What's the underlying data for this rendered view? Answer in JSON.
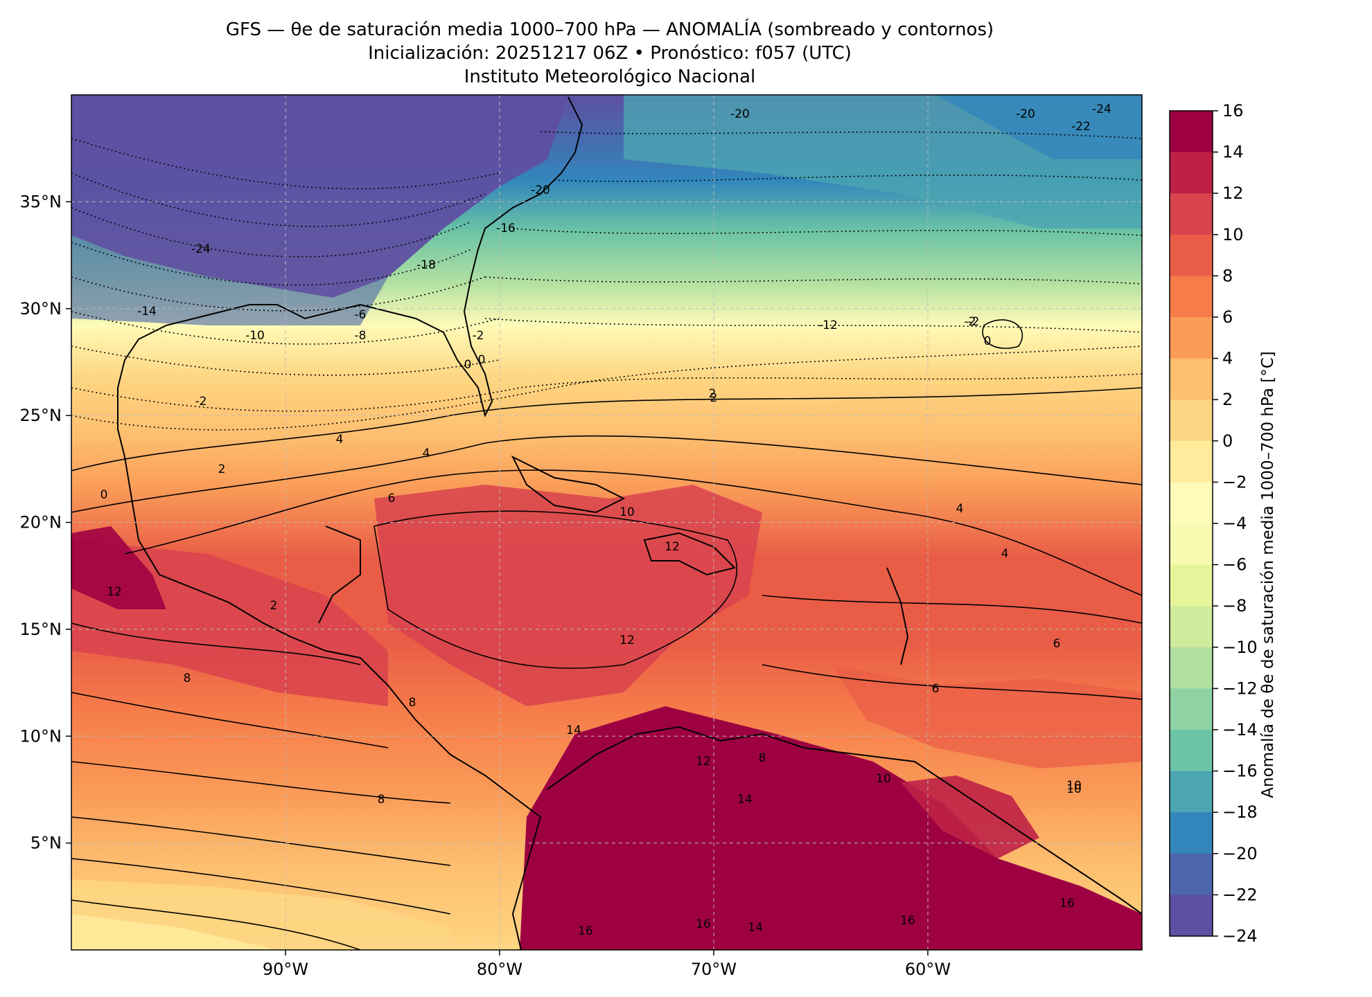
{
  "title": {
    "line1": "GFS — θe de saturación media 1000–700 hPa — ANOMALÍA (sombreado y contornos)",
    "line2": "Inicialización: 20251217 06Z   •   Pronóstico: f057 (UTC)",
    "line3": "Instituto Meteorológico Nacional"
  },
  "map": {
    "lon_range": [
      -100,
      -50
    ],
    "lat_range": [
      0,
      40
    ],
    "lat_ticks": [
      "5°N",
      "10°N",
      "15°N",
      "20°N",
      "25°N",
      "30°N",
      "35°N"
    ],
    "lon_ticks": [
      "90°W",
      "80°W",
      "70°W",
      "60°W"
    ],
    "gridlines": true,
    "coastlines": true,
    "contour_labels": [
      "-24",
      "-22",
      "-20",
      "-20",
      "-20",
      "-18",
      "-16",
      "-14",
      "-12",
      "-10",
      "-8",
      "-6",
      "-2",
      "-2",
      "-2",
      "0",
      "0",
      "0",
      "0",
      "2",
      "2",
      "2",
      "4",
      "4",
      "4",
      "4",
      "6",
      "6",
      "8",
      "8",
      "8",
      "8",
      "10",
      "10",
      "10",
      "12",
      "12",
      "12",
      "12",
      "14",
      "14",
      "16",
      "16",
      "16",
      "16",
      "-2",
      "2",
      "6",
      "10",
      "14",
      "-24"
    ]
  },
  "colorbar": {
    "label": "Anomalía de θe de saturación media 1000–700 hPa [°C]",
    "ticks": [
      "16",
      "14",
      "12",
      "10",
      "8",
      "6",
      "4",
      "2",
      "0",
      "−2",
      "−4",
      "−6",
      "−8",
      "−10",
      "−12",
      "−14",
      "−16",
      "−18",
      "−20",
      "−22",
      "−24"
    ],
    "colors": [
      "#9e0142",
      "#be2146",
      "#d8434e",
      "#e95d47",
      "#f67c4a",
      "#fa9c58",
      "#fdbe6f",
      "#fed683",
      "#ffeb9b",
      "#fffbb8",
      "#f7fbb2",
      "#e7f59a",
      "#cfec9d",
      "#b2e0a2",
      "#8fd2a4",
      "#6cc4a5",
      "#4ca5b1",
      "#3286bc",
      "#4b66ac",
      "#5e4fa2"
    ],
    "range": [
      -24,
      16
    ]
  }
}
